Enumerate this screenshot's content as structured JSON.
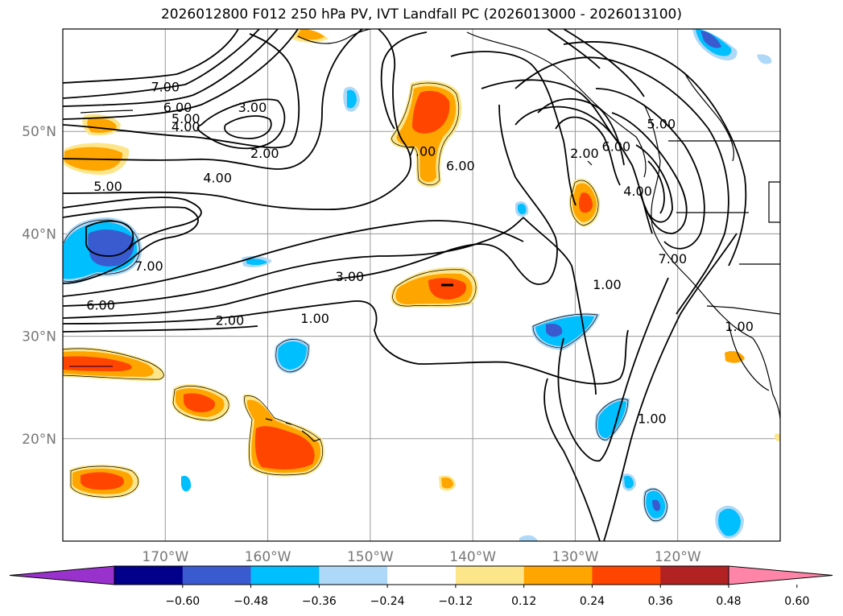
{
  "chart_data": {
    "type": "map-contour",
    "title": "2026012800 F012 250 hPa PV, IVT Landfall PC (2026013000 - 2026013100)",
    "xlim": [
      -180,
      -110
    ],
    "ylim": [
      10,
      60
    ],
    "grid": true,
    "x_ticks": [
      {
        "value": -170,
        "label": "170°W"
      },
      {
        "value": -160,
        "label": "160°W"
      },
      {
        "value": -150,
        "label": "150°W"
      },
      {
        "value": -140,
        "label": "140°W"
      },
      {
        "value": -130,
        "label": "130°W"
      },
      {
        "value": -120,
        "label": "120°W"
      }
    ],
    "y_ticks": [
      {
        "value": 20,
        "label": "20°N"
      },
      {
        "value": 30,
        "label": "30°N"
      },
      {
        "value": 40,
        "label": "40°N"
      },
      {
        "value": 50,
        "label": "50°N"
      }
    ],
    "colorbar": {
      "ticks": [
        "−0.60",
        "−0.48",
        "−0.36",
        "−0.24",
        "−0.12",
        "0.12",
        "0.24",
        "0.36",
        "0.48",
        "0.60"
      ],
      "colors": [
        "#9932cc",
        "#00008b",
        "#3a5bd0",
        "#00bfff",
        "#add8f7",
        "#ffffff",
        "#fde68a",
        "#ffa500",
        "#ff4500",
        "#b22222",
        "#ff85a8"
      ],
      "extend": "both"
    },
    "contour_labels": [
      {
        "text": "7.00",
        "lon": -170.0,
        "lat": 54.3
      },
      {
        "text": "6.00",
        "lon": -168.8,
        "lat": 52.3
      },
      {
        "text": "5.00",
        "lon": -168.0,
        "lat": 51.2
      },
      {
        "text": "4.00",
        "lon": -168.0,
        "lat": 50.4
      },
      {
        "text": "3.00",
        "lon": -161.5,
        "lat": 52.3
      },
      {
        "text": "2.00",
        "lon": -160.3,
        "lat": 47.8
      },
      {
        "text": "4.00",
        "lon": -164.9,
        "lat": 45.4
      },
      {
        "text": "5.00",
        "lon": -175.6,
        "lat": 44.6
      },
      {
        "text": "7.00",
        "lon": -145.0,
        "lat": 48.0
      },
      {
        "text": "6.00",
        "lon": -141.2,
        "lat": 46.6
      },
      {
        "text": "5.00",
        "lon": -121.6,
        "lat": 50.7
      },
      {
        "text": "6.00",
        "lon": -126.0,
        "lat": 48.5
      },
      {
        "text": "2.00",
        "lon": -129.1,
        "lat": 47.8
      },
      {
        "text": "4.00",
        "lon": -123.9,
        "lat": 44.1
      },
      {
        "text": "7.00",
        "lon": -120.5,
        "lat": 37.5
      },
      {
        "text": "1.00",
        "lon": -126.9,
        "lat": 35.0
      },
      {
        "text": "1.00",
        "lon": -114.0,
        "lat": 30.9
      },
      {
        "text": "1.00",
        "lon": -122.5,
        "lat": 21.9
      },
      {
        "text": "7.00",
        "lon": -171.6,
        "lat": 36.8
      },
      {
        "text": "3.00",
        "lon": -152.0,
        "lat": 35.8
      },
      {
        "text": "6.00",
        "lon": -176.3,
        "lat": 33.0
      },
      {
        "text": "2.00",
        "lon": -163.7,
        "lat": 31.5
      },
      {
        "text": "1.00",
        "lon": -155.4,
        "lat": 31.7
      }
    ]
  }
}
